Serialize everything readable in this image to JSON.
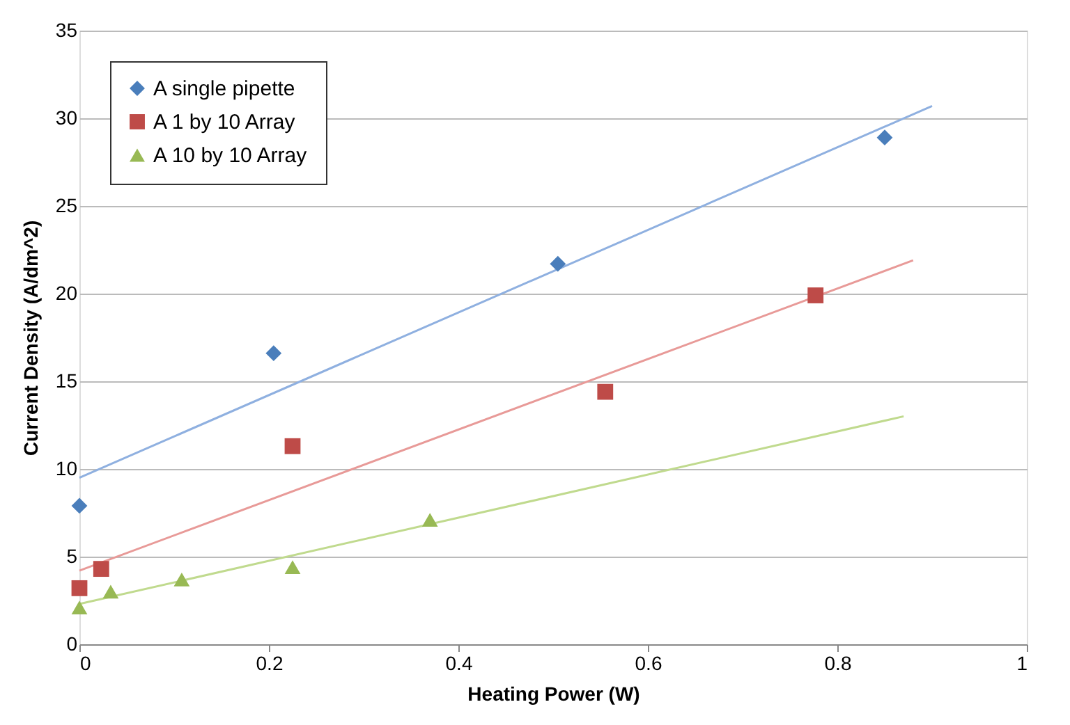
{
  "chart_data": {
    "type": "scatter",
    "xlabel": "Heating Power (W)",
    "ylabel": "Current Density (A/dm^2)",
    "xlim": [
      0,
      1
    ],
    "xticks": [
      0,
      0.2,
      0.4,
      0.6,
      0.8,
      1
    ],
    "ylim": [
      0,
      35
    ],
    "yticks": [
      0,
      5,
      10,
      15,
      20,
      25,
      30,
      35
    ],
    "grid": "y",
    "legend": "top left",
    "series": [
      {
        "name": "A single pipette",
        "color": "#4a7ebb",
        "marker": "diamond",
        "x": [
          0,
          0.205,
          0.505,
          0.85
        ],
        "values": [
          7.9,
          16.6,
          21.7,
          28.9
        ]
      },
      {
        "name": "A 1 by 10 Array",
        "color": "#be4b48",
        "marker": "square",
        "x": [
          0,
          0.023,
          0.225,
          0.555,
          0.777
        ],
        "values": [
          3.2,
          4.3,
          11.3,
          14.4,
          19.9
        ]
      },
      {
        "name": "A 10 by 10 Array",
        "color": "#98b954",
        "marker": "triangle",
        "x": [
          0,
          0.033,
          0.108,
          0.225,
          0.37
        ],
        "values": [
          2.1,
          3.0,
          3.7,
          4.4,
          7.1
        ]
      },
      {
        "type": "line",
        "color": "#8fb0e0",
        "x": [
          0,
          0.9
        ],
        "values": [
          9.5,
          30.7
        ]
      },
      {
        "type": "line",
        "color": "#e89a98",
        "x": [
          0,
          0.88
        ],
        "values": [
          4.2,
          21.9
        ]
      },
      {
        "type": "line",
        "color": "#c0da8e",
        "x": [
          0,
          0.87
        ],
        "values": [
          2.3,
          13.0
        ]
      }
    ]
  }
}
